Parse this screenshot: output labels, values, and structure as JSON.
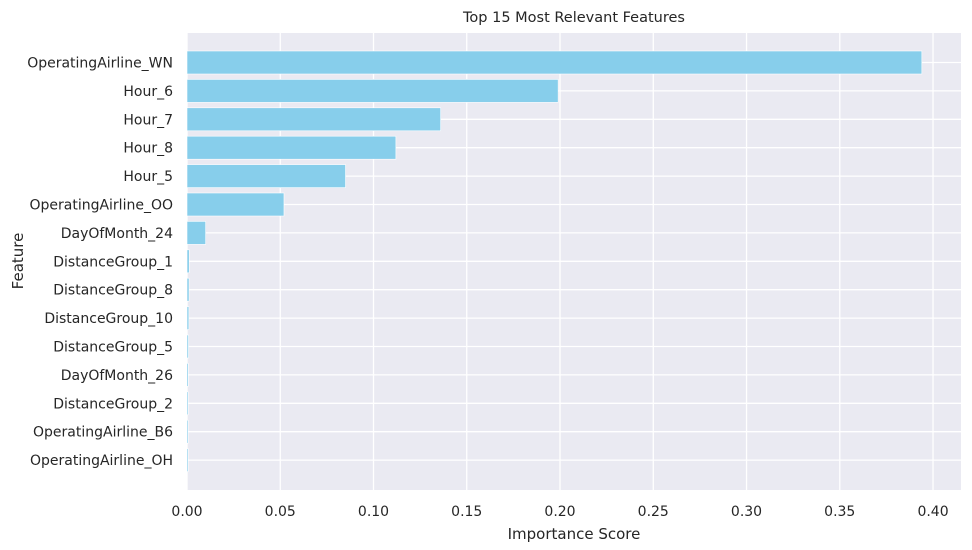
{
  "chart_data": {
    "type": "bar",
    "orientation": "horizontal",
    "title": "Top 15 Most Relevant Features",
    "xlabel": "Importance Score",
    "ylabel": "Feature",
    "xlim": [
      0,
      0.415
    ],
    "xticks": [
      "0.00",
      "0.05",
      "0.10",
      "0.15",
      "0.20",
      "0.25",
      "0.30",
      "0.35",
      "0.40"
    ],
    "categories": [
      "OperatingAirline_WN",
      "Hour_6",
      "Hour_7",
      "Hour_8",
      "Hour_5",
      "OperatingAirline_OO",
      "DayOfMonth_24",
      "DistanceGroup_1",
      "DistanceGroup_8",
      "DistanceGroup_10",
      "DistanceGroup_5",
      "DayOfMonth_26",
      "DistanceGroup_2",
      "OperatingAirline_B6",
      "OperatingAirline_OH"
    ],
    "values": [
      0.394,
      0.199,
      0.136,
      0.112,
      0.085,
      0.052,
      0.01,
      0.0012,
      0.0011,
      0.001,
      0.0008,
      0.0007,
      0.0006,
      0.0003,
      0.0002
    ],
    "bar_color": "#87CEEB",
    "background_color": "#EAEAF2",
    "grid": true
  }
}
